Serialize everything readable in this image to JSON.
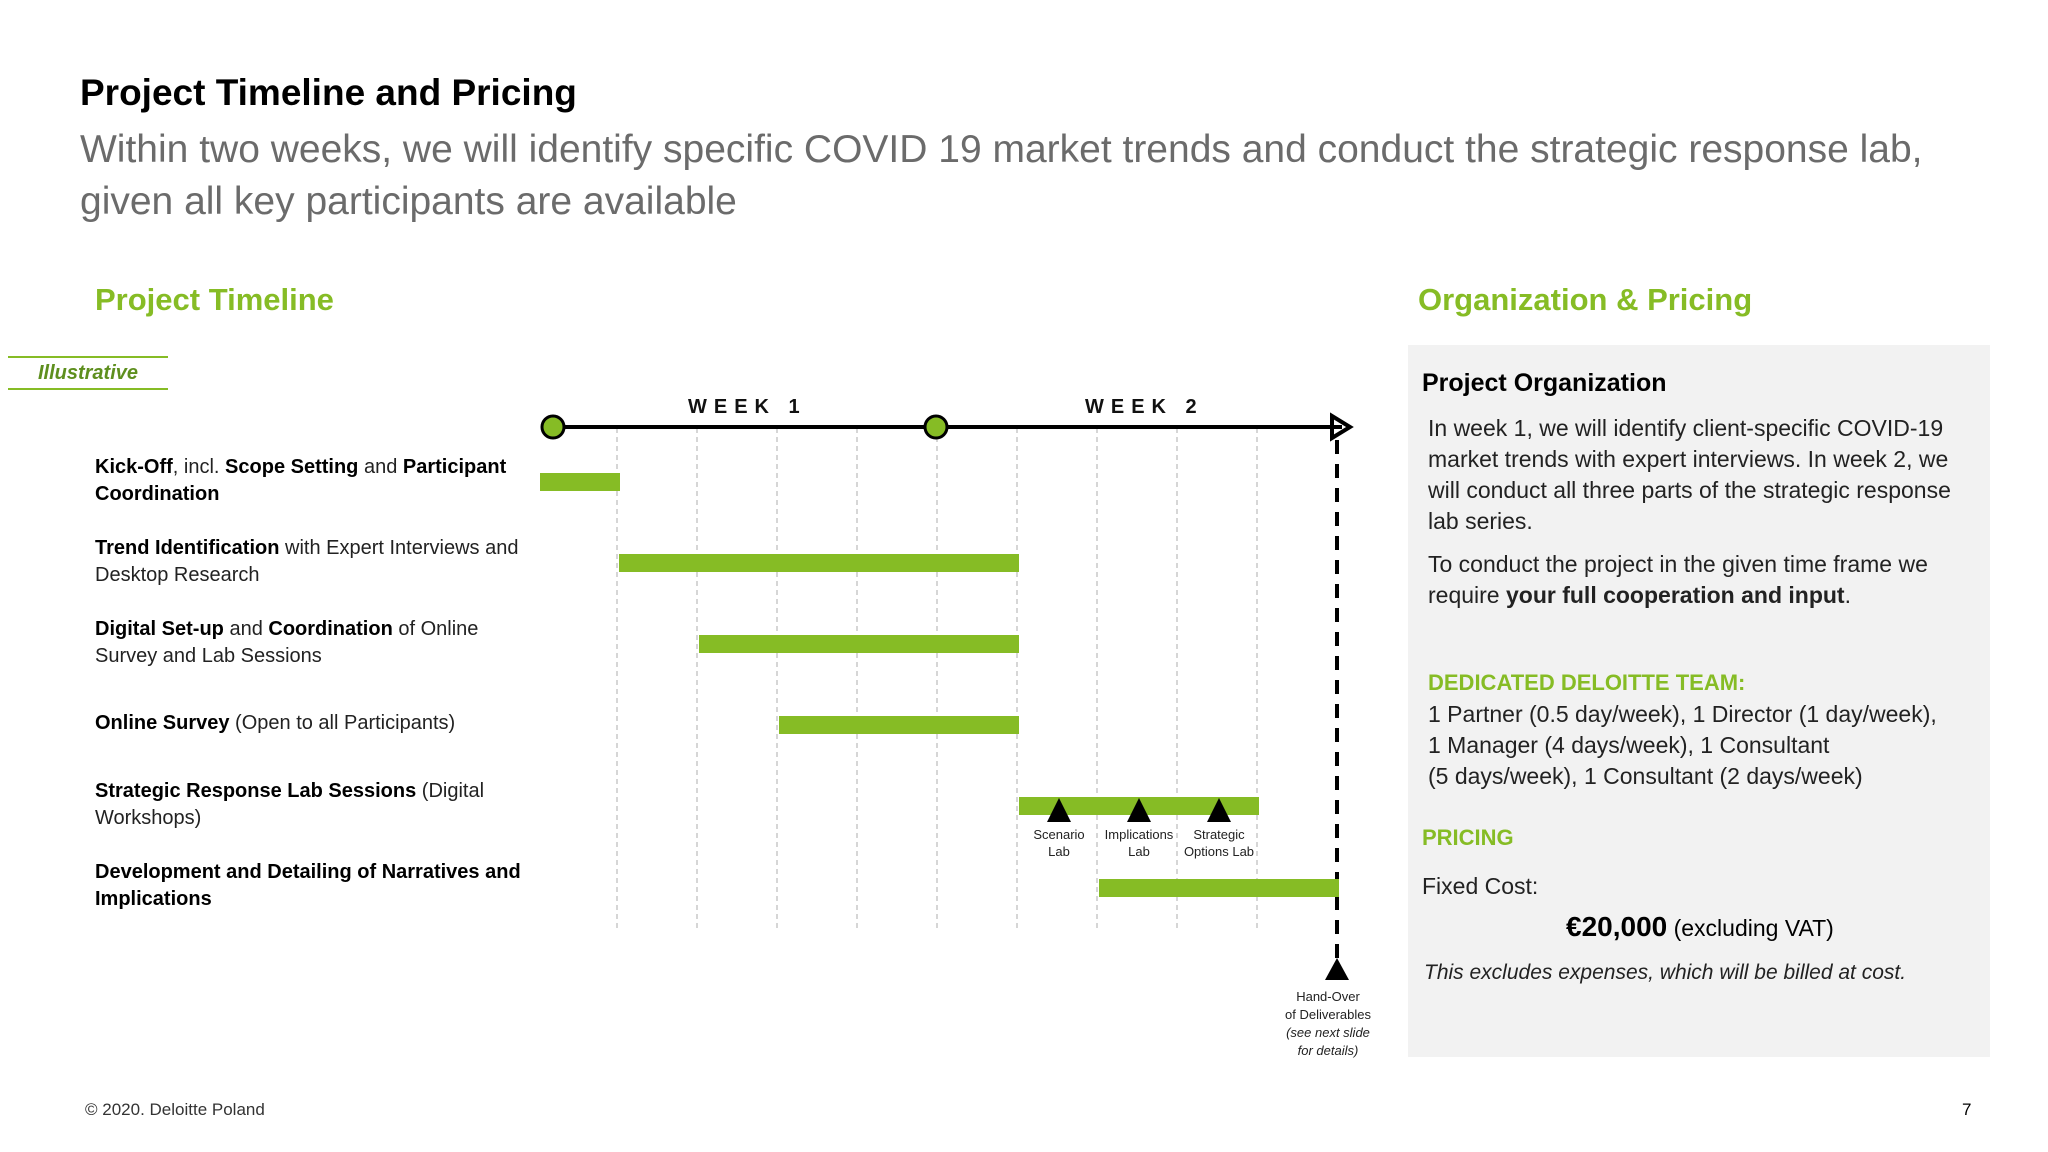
{
  "header": {
    "title": "Project Timeline and Pricing",
    "subtitle_line1": "Within two weeks, we will identify specific COVID 19 market trends and conduct the strategic response lab,",
    "subtitle_line2": "given all key participants are available"
  },
  "timeline": {
    "heading": "Project Timeline",
    "badge": "Illustrative",
    "week1": "WEEK 1",
    "week2": "WEEK 2",
    "tasks": [
      {
        "b1": "Kick-Off",
        "t1": ", incl. ",
        "b2": "Scope Setting",
        "t2": " and ",
        "b3": "Participant Coordination",
        "t3": ""
      },
      {
        "b1": "Trend Identification",
        "t1": " with Expert Interviews and Desktop Research",
        "b2": "",
        "t2": "",
        "b3": "",
        "t3": ""
      },
      {
        "b1": "Digital Set-up",
        "t1": " and ",
        "b2": "Coordination",
        "t2": " of Online Survey and Lab Sessions",
        "b3": "",
        "t3": ""
      },
      {
        "b1": "Online Survey",
        "t1": " (Open to all Participants)",
        "b2": "",
        "t2": "",
        "b3": "",
        "t3": ""
      },
      {
        "b1": "Strategic Response Lab Sessions",
        "t1": " (Digital Workshops)",
        "b2": "",
        "t2": "",
        "b3": "",
        "t3": ""
      },
      {
        "b1": "Development and Detailing of Narratives and Implications",
        "t1": "",
        "b2": "",
        "t2": "",
        "b3": "",
        "t3": ""
      }
    ],
    "labs": [
      {
        "l1": "Scenario",
        "l2": "Lab"
      },
      {
        "l1": "Implications",
        "l2": "Lab"
      },
      {
        "l1": "Strategic",
        "l2": "Options Lab"
      }
    ],
    "handover": {
      "l1": "Hand-Over",
      "l2": "of Deliverables",
      "l3": "(see next slide",
      "l4": "for details)"
    },
    "colors": {
      "bar": "#86bc25",
      "axis": "#000000",
      "grid": "#c8c8c8"
    }
  },
  "pricing_section": {
    "heading": "Organization & Pricing",
    "org_title": "Project Organization",
    "org_p1": "In week 1, we will identify client-specific COVID-19 market trends with expert interviews. In week 2, we will conduct all three parts of the strategic response lab series.",
    "org_p2_a": "To conduct the project in the given time frame we require ",
    "org_p2_b": "your full cooperation and input",
    "org_p2_c": ".",
    "team_heading": "DEDICATED DELOITTE TEAM:",
    "team_l1": "1 Partner (0.5 day/week), 1 Director (1 day/week),",
    "team_l2": "1 Manager (4 days/week), 1 Consultant",
    "team_l3": "(5 days/week), 1 Consultant (2 days/week)",
    "pricing_heading": "PRICING",
    "fixed_label": "Fixed Cost:",
    "price": "€20,000",
    "price_note": " (excluding VAT)",
    "disclaimer": "This excludes expenses, which will be billed at cost."
  },
  "footer": {
    "copyright": "© 2020. Deloitte Poland",
    "page": "7"
  }
}
